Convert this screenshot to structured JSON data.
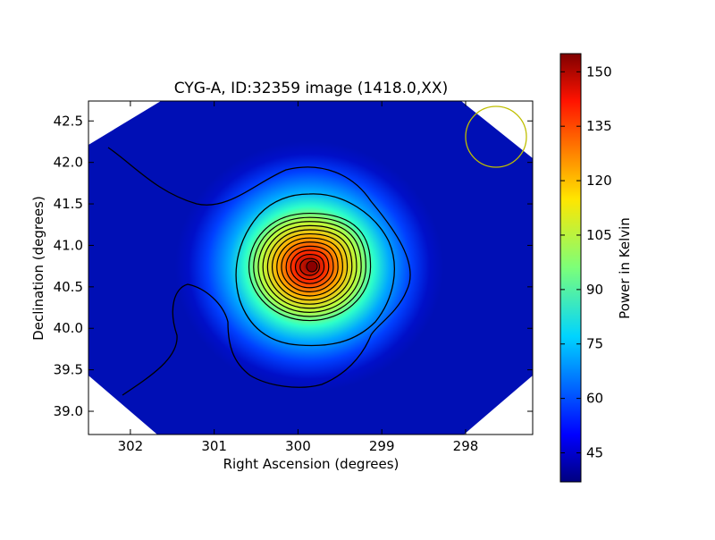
{
  "chart_data": {
    "type": "heatmap",
    "title": "CYG-A, ID:32359 image (1418.0,XX)",
    "xlabel": "Right Ascension (degrees)",
    "ylabel": "Declination (degrees)",
    "xlim": [
      302.5,
      297.2
    ],
    "ylim": [
      38.72,
      42.74
    ],
    "x_ticks": [
      "302",
      "301",
      "300",
      "299",
      "298"
    ],
    "y_ticks": [
      "39.0",
      "39.5",
      "40.0",
      "40.5",
      "41.0",
      "41.5",
      "42.0",
      "42.5"
    ],
    "colorbar": {
      "label": "Power in Kelvin",
      "ticks": [
        "45",
        "60",
        "75",
        "90",
        "105",
        "120",
        "135",
        "150"
      ],
      "range": [
        37,
        155
      ],
      "colormap": "jet"
    },
    "peak": {
      "ra": 299.86,
      "dec": 40.74,
      "value": 154
    },
    "background_value": 40,
    "beam_circle": {
      "ra": 297.65,
      "dec": 42.3,
      "color": "#bfbf00"
    }
  }
}
